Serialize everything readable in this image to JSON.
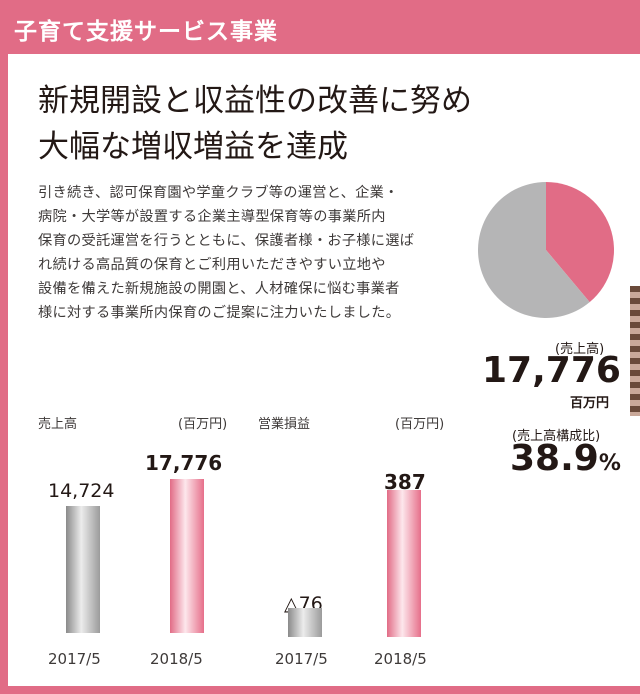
{
  "header": {
    "title": "子育て支援サービス事業"
  },
  "headline": {
    "line1": "新規開設と収益性の改善に努め",
    "line2": "大幅な増収増益を達成"
  },
  "body": {
    "lines": [
      "引き続き、認可保育園や学童クラブ等の運営と、企業・",
      "病院・大学等が設置する企業主導型保育等の事業所内",
      "保育の受託運営を行うとともに、保護者様・お子様に選ば",
      "れ続ける高品質の保育とご利用いただきやすい立地や",
      "設備を備えた新規施設の開園と、人材確保に悩む事業者",
      "様に対する事業所内保育のご提案に注力いたしました。"
    ]
  },
  "kpi": {
    "sales_label": "(売上高)",
    "sales_value": "17,776",
    "sales_unit": "百万円",
    "ratio_label": "(売上高構成比)",
    "ratio_value": "38.9",
    "ratio_unit": "%"
  },
  "colors": {
    "accent": "#e16c86",
    "gray": "#b5b5b6",
    "text": "#231815"
  },
  "chart_data": [
    {
      "type": "pie",
      "slices": [
        {
          "value": 38.9,
          "color": "#e16c86"
        },
        {
          "value": 61.1,
          "color": "#b5b5b6"
        }
      ]
    },
    {
      "type": "bar",
      "title": "売上高",
      "unit": "(百万円)",
      "categories": [
        "2017/5",
        "2018/5"
      ],
      "values": [
        14724,
        17776
      ],
      "value_labels": [
        "14,724",
        "17,776"
      ],
      "ylim": [
        0,
        18500
      ]
    },
    {
      "type": "bar",
      "title": "営業損益",
      "unit": "(百万円)",
      "categories": [
        "2017/5",
        "2018/5"
      ],
      "values": [
        -76,
        387
      ],
      "value_labels": [
        "△76",
        "387"
      ]
    }
  ]
}
